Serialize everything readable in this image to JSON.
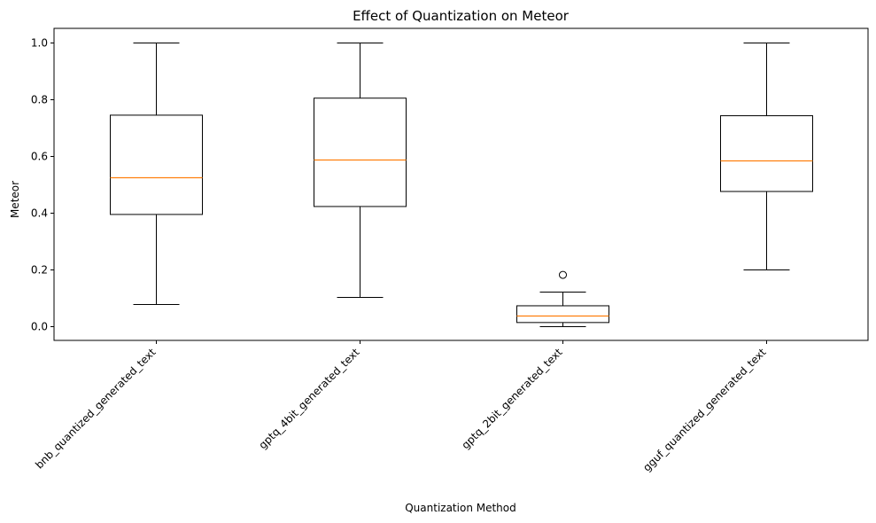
{
  "chart_data": {
    "type": "box",
    "title": "Effect of Quantization on Meteor",
    "xlabel": "Quantization Method",
    "ylabel": "Meteor",
    "categories": [
      "bnb_quantized_generated_text",
      "gptq_4bit_generated_text",
      "gptq_2bit_generated_text",
      "gguf_quantized_generated_text"
    ],
    "boxes": [
      {
        "whisker_low": 0.078,
        "q1": 0.394,
        "median": 0.525,
        "q3": 0.744,
        "whisker_high": 1.0,
        "outliers": []
      },
      {
        "whisker_low": 0.103,
        "q1": 0.422,
        "median": 0.588,
        "q3": 0.804,
        "whisker_high": 1.0,
        "outliers": []
      },
      {
        "whisker_low": 0.0,
        "q1": 0.013,
        "median": 0.037,
        "q3": 0.072,
        "whisker_high": 0.121,
        "outliers": [
          0.181
        ]
      },
      {
        "whisker_low": 0.2,
        "q1": 0.475,
        "median": 0.584,
        "q3": 0.742,
        "whisker_high": 1.0,
        "outliers": []
      }
    ],
    "ylim": [
      -0.05,
      1.05
    ],
    "yticks": [
      0.0,
      0.2,
      0.4,
      0.6,
      0.8,
      1.0
    ],
    "ytick_labels": [
      "0.0",
      "0.2",
      "0.4",
      "0.6",
      "0.8",
      "1.0"
    ],
    "xtick_rotation_deg": 45,
    "grid": false,
    "colors": {
      "box": "#000000",
      "median": "#ff7f0e",
      "outlier": "#000000",
      "axes": "#000000"
    }
  }
}
